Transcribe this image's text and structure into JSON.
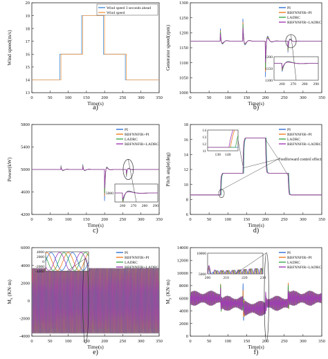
{
  "colors": {
    "pi": "#2e6fd6",
    "rbf_pi": "#f07c1e",
    "ladrc": "#3aa84a",
    "rbf_ladrc": "#a23ab5",
    "wind_ahead": "#3f8fd8",
    "wind": "#f39a4c",
    "axis": "#222222"
  },
  "chart_data": [
    {
      "id": "a",
      "caption": "a)",
      "type": "line",
      "xlabel": "Time(s)",
      "ylabel": "Wind speed(m/s)",
      "xlim": [
        0,
        350
      ],
      "ylim": [
        13,
        20
      ],
      "xticks": [
        0,
        50,
        100,
        150,
        200,
        250,
        300,
        350
      ],
      "yticks": [
        13,
        14,
        15,
        16,
        17,
        18,
        19,
        20
      ],
      "legend_position": "top-right",
      "series": [
        {
          "name": "Wind speed 3 seconds ahead",
          "color_key": "wind_ahead",
          "x": [
            0,
            77,
            77,
            137,
            137,
            197,
            197,
            257,
            257,
            350
          ],
          "y": [
            14,
            14,
            16,
            16,
            19,
            19,
            16,
            16,
            14,
            14
          ]
        },
        {
          "name": "Wind speed",
          "color_key": "wind",
          "x": [
            0,
            80,
            80,
            140,
            140,
            200,
            200,
            260,
            260,
            350
          ],
          "y": [
            14,
            14,
            16,
            16,
            19,
            19,
            16,
            16,
            14,
            14
          ]
        }
      ]
    },
    {
      "id": "b",
      "caption": "b)",
      "type": "line",
      "xlabel": "Time(s)",
      "ylabel": "Generator speed(rpm)",
      "xlim": [
        0,
        350
      ],
      "ylim": [
        1000,
        1300
      ],
      "xticks": [
        0,
        50,
        100,
        150,
        200,
        250,
        300,
        350
      ],
      "yticks": [
        1000,
        1050,
        1100,
        1150,
        1200,
        1250,
        1300
      ],
      "legend_position": "top-right",
      "baseline": 1172,
      "events": [
        {
          "t": 80,
          "amp": 42,
          "dip": -18
        },
        {
          "t": 140,
          "amp": 75,
          "dip": -22
        },
        {
          "t": 200,
          "amp": -120,
          "dip": 28
        },
        {
          "t": 260,
          "amp": -38,
          "dip": 14
        }
      ],
      "series": [
        {
          "name": "PI",
          "color_key": "pi",
          "scale": 1.0
        },
        {
          "name": "RBFNNFIR+PI",
          "color_key": "rbf_pi",
          "scale": 0.85
        },
        {
          "name": "LADRC",
          "color_key": "ladrc",
          "scale": 0.75
        },
        {
          "name": "RBFNNFIR+LADRC",
          "color_key": "rbf_ladrc",
          "scale": 0.6
        }
      ],
      "inset": {
        "xlim": [
          253,
          292
        ],
        "ylim": [
          1100,
          1200
        ],
        "xticks": [
          260,
          270,
          280,
          290
        ],
        "yticks": [
          1100,
          1150,
          1200
        ]
      }
    },
    {
      "id": "c",
      "caption": "c)",
      "type": "line",
      "xlabel": "Time(s)",
      "ylabel": "Power(kW)",
      "xlim": [
        0,
        350
      ],
      "ylim": [
        4200,
        5800
      ],
      "xticks": [
        0,
        50,
        100,
        150,
        200,
        250,
        300,
        350
      ],
      "yticks": [
        4200,
        4600,
        5000,
        5400,
        5800
      ],
      "legend_position": "top-right",
      "baseline": 5000,
      "events": [
        {
          "t": 80,
          "amp": 70,
          "dip": -40
        },
        {
          "t": 140,
          "amp": 90,
          "dip": -40
        },
        {
          "t": 200,
          "amp": -560,
          "dip": 60
        },
        {
          "t": 260,
          "amp": -130,
          "dip": 40
        }
      ],
      "series": [
        {
          "name": "PI",
          "color_key": "pi",
          "scale": 1.0
        },
        {
          "name": "RBFNNFIR+PI",
          "color_key": "rbf_pi",
          "scale": 0.85
        },
        {
          "name": "LADRC",
          "color_key": "ladrc",
          "scale": 0.75
        },
        {
          "name": "RBFNNFIR+LADRC",
          "color_key": "rbf_ladrc",
          "scale": 0.6
        }
      ],
      "inset": {
        "xlim": [
          253,
          292
        ],
        "ylim": [
          4900,
          5100
        ],
        "xticks": [
          260,
          270,
          280,
          290
        ],
        "yticks": [
          5000
        ]
      }
    },
    {
      "id": "d",
      "caption": "d)",
      "type": "line",
      "xlabel": "Time(s)",
      "ylabel": "Pitch angle(deg)",
      "xlim": [
        0,
        350
      ],
      "ylim": [
        6,
        18
      ],
      "xticks": [
        0,
        50,
        100,
        150,
        200,
        250,
        300,
        350
      ],
      "yticks": [
        6,
        8,
        10,
        12,
        14,
        16,
        18
      ],
      "legend_position": "top-right",
      "annotation": "Feedforward control effect",
      "levels": [
        [
          0,
          8.6
        ],
        [
          80,
          11.5
        ],
        [
          140,
          16.2
        ],
        [
          200,
          11.5
        ],
        [
          260,
          8.6
        ],
        [
          350,
          8.6
        ]
      ],
      "series": [
        {
          "name": "PI",
          "color_key": "pi",
          "lag": 2.0
        },
        {
          "name": "RBFNNFIR+PI",
          "color_key": "rbf_pi",
          "lag": 0.5
        },
        {
          "name": "LADRC",
          "color_key": "ladrc",
          "lag": 1.5
        },
        {
          "name": "RBFNNFIR+LADRC",
          "color_key": "rbf_ladrc",
          "lag": 0.2
        }
      ],
      "inset": {
        "xlim": [
          136,
          142
        ],
        "ylim": [
          11,
          14
        ],
        "xticks": [
          138,
          140
        ],
        "yticks": [
          11,
          12,
          13,
          14
        ]
      }
    },
    {
      "id": "e",
      "caption": "e)",
      "type": "line",
      "xlabel": "Time(s)",
      "ylabel_main": "M",
      "ylabel_sub": "x",
      "ylabel_unit": " (KN·m)",
      "xlim": [
        0,
        350
      ],
      "ylim": [
        -4000,
        6000
      ],
      "xticks": [
        0,
        50,
        100,
        150,
        200,
        250,
        300,
        350
      ],
      "yticks": [
        -4000,
        -2000,
        0,
        2000,
        4000,
        6000
      ],
      "legend_position": "top-right",
      "amplitude": 3700,
      "period": 4,
      "series": [
        {
          "name": "PI",
          "color_key": "pi",
          "phase": 0
        },
        {
          "name": "RBFNNFIR+PI",
          "color_key": "rbf_pi",
          "phase": 0.8
        },
        {
          "name": "LADRC",
          "color_key": "ladrc",
          "phase": 1.6
        },
        {
          "name": "RBFNNFIR+LADRC",
          "color_key": "rbf_ladrc",
          "phase": 2.4
        }
      ],
      "inset": {
        "xlim": [
          0,
          8
        ],
        "ylim": [
          -4000,
          4000
        ],
        "xticks": [],
        "yticks": [
          -4000,
          -2000,
          0,
          2000,
          4000
        ]
      }
    },
    {
      "id": "f",
      "caption": "f)",
      "type": "line",
      "xlabel": "Time(s)",
      "ylabel_main": "M",
      "ylabel_sub": "y",
      "ylabel_unit": " (KN·m)",
      "xlim": [
        0,
        350
      ],
      "ylim": [
        0,
        14000
      ],
      "xticks": [
        0,
        50,
        100,
        150,
        200,
        250,
        300,
        350
      ],
      "yticks": [
        0,
        2000,
        4000,
        6000,
        8000,
        10000,
        12000,
        14000
      ],
      "legend_position": "top-right",
      "levels": [
        [
          0,
          6000
        ],
        [
          80,
          5200
        ],
        [
          140,
          4400
        ],
        [
          200,
          5200
        ],
        [
          260,
          6000
        ],
        [
          350,
          6000
        ]
      ],
      "amplitude": 900,
      "series": [
        {
          "name": "PI",
          "color_key": "pi"
        },
        {
          "name": "RBFNNFIR+PI",
          "color_key": "rbf_pi"
        },
        {
          "name": "LADRC",
          "color_key": "ladrc"
        },
        {
          "name": "RBFNNFIR+LADRC",
          "color_key": "rbf_ladrc"
        }
      ],
      "inset": {
        "xlim": [
          200,
          230
        ],
        "ylim": [
          5000,
          10000
        ],
        "xticks": [
          200,
          210,
          220,
          230
        ],
        "yticks": [
          5000,
          10000
        ]
      }
    }
  ]
}
